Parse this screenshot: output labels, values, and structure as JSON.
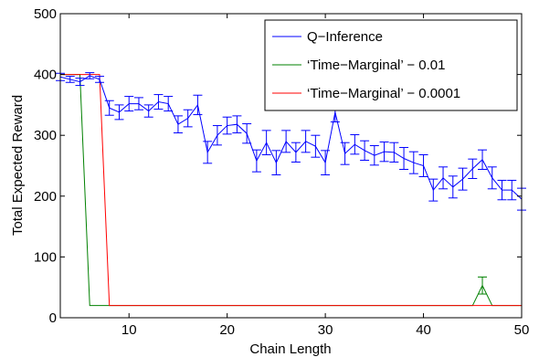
{
  "chart_data": {
    "type": "line",
    "title": "",
    "xlabel": "Chain Length",
    "ylabel": "Total Expected Reward",
    "xlim": [
      3,
      50
    ],
    "ylim": [
      0,
      500
    ],
    "xticks": [
      10,
      20,
      30,
      40,
      50
    ],
    "yticks": [
      0,
      100,
      200,
      300,
      400,
      500
    ],
    "grid": false,
    "legend_position": "top-right",
    "series": [
      {
        "name": "Q−Inference",
        "color": "#0000ff",
        "x": [
          3,
          4,
          5,
          6,
          7,
          8,
          9,
          10,
          11,
          12,
          13,
          14,
          15,
          16,
          17,
          18,
          19,
          20,
          21,
          22,
          23,
          24,
          25,
          26,
          27,
          28,
          29,
          30,
          31,
          32,
          33,
          34,
          35,
          36,
          37,
          38,
          39,
          40,
          41,
          42,
          43,
          44,
          45,
          46,
          47,
          48,
          49,
          50
        ],
        "y": [
          396,
          392,
          388,
          398,
          392,
          345,
          338,
          352,
          352,
          340,
          355,
          352,
          318,
          328,
          350,
          272,
          300,
          316,
          318,
          303,
          258,
          288,
          255,
          290,
          272,
          290,
          282,
          255,
          338,
          270,
          285,
          275,
          267,
          273,
          272,
          262,
          255,
          250,
          210,
          230,
          215,
          228,
          245,
          260,
          230,
          210,
          210,
          195
        ],
        "error": [
          6,
          5,
          6,
          5,
          5,
          12,
          12,
          12,
          10,
          10,
          12,
          12,
          14,
          14,
          16,
          18,
          16,
          14,
          14,
          16,
          18,
          20,
          20,
          18,
          16,
          18,
          18,
          20,
          16,
          18,
          16,
          16,
          16,
          16,
          16,
          18,
          18,
          18,
          18,
          18,
          18,
          18,
          16,
          16,
          18,
          16,
          16,
          18
        ]
      },
      {
        "name": "‘Time−Marginal’ − 0.01",
        "color": "#008000",
        "x": [
          3,
          4,
          5,
          6,
          7,
          8,
          9,
          10,
          11,
          12,
          13,
          14,
          15,
          16,
          17,
          18,
          19,
          20,
          21,
          22,
          23,
          24,
          25,
          26,
          27,
          28,
          29,
          30,
          31,
          32,
          33,
          34,
          35,
          36,
          37,
          38,
          39,
          40,
          41,
          42,
          43,
          44,
          45,
          46,
          47,
          48,
          49,
          50
        ],
        "y": [
          400,
          400,
          400,
          20,
          20,
          20,
          20,
          20,
          20,
          20,
          20,
          20,
          20,
          20,
          20,
          20,
          20,
          20,
          20,
          20,
          20,
          20,
          20,
          20,
          20,
          20,
          20,
          20,
          20,
          20,
          20,
          20,
          20,
          20,
          20,
          20,
          20,
          20,
          20,
          20,
          20,
          20,
          20,
          53,
          20,
          20,
          20,
          20
        ],
        "error": [
          0,
          0,
          0,
          0,
          0,
          0,
          0,
          0,
          0,
          0,
          0,
          0,
          0,
          0,
          0,
          0,
          0,
          0,
          0,
          0,
          0,
          0,
          0,
          0,
          0,
          0,
          0,
          0,
          0,
          0,
          0,
          0,
          0,
          0,
          0,
          0,
          0,
          0,
          0,
          0,
          0,
          0,
          0,
          14,
          0,
          0,
          0,
          0
        ]
      },
      {
        "name": "‘Time−Marginal’ − 0.0001",
        "color": "#ff0000",
        "x": [
          3,
          4,
          5,
          6,
          7,
          8,
          9,
          10,
          11,
          12,
          13,
          14,
          15,
          16,
          17,
          18,
          19,
          20,
          21,
          22,
          23,
          24,
          25,
          26,
          27,
          28,
          29,
          30,
          31,
          32,
          33,
          34,
          35,
          36,
          37,
          38,
          39,
          40,
          41,
          42,
          43,
          44,
          45,
          46,
          47,
          48,
          49,
          50
        ],
        "y": [
          400,
          400,
          400,
          400,
          400,
          20,
          20,
          20,
          20,
          20,
          20,
          20,
          20,
          20,
          20,
          20,
          20,
          20,
          20,
          20,
          20,
          20,
          20,
          20,
          20,
          20,
          20,
          20,
          20,
          20,
          20,
          20,
          20,
          20,
          20,
          20,
          20,
          20,
          20,
          20,
          20,
          20,
          20,
          20,
          20,
          20,
          20,
          20
        ],
        "error": [
          0,
          0,
          0,
          0,
          0,
          0,
          0,
          0,
          0,
          0,
          0,
          0,
          0,
          0,
          0,
          0,
          0,
          0,
          0,
          0,
          0,
          0,
          0,
          0,
          0,
          0,
          0,
          0,
          0,
          0,
          0,
          0,
          0,
          0,
          0,
          0,
          0,
          0,
          0,
          0,
          0,
          0,
          0,
          0,
          0,
          0,
          0,
          0
        ]
      }
    ]
  }
}
